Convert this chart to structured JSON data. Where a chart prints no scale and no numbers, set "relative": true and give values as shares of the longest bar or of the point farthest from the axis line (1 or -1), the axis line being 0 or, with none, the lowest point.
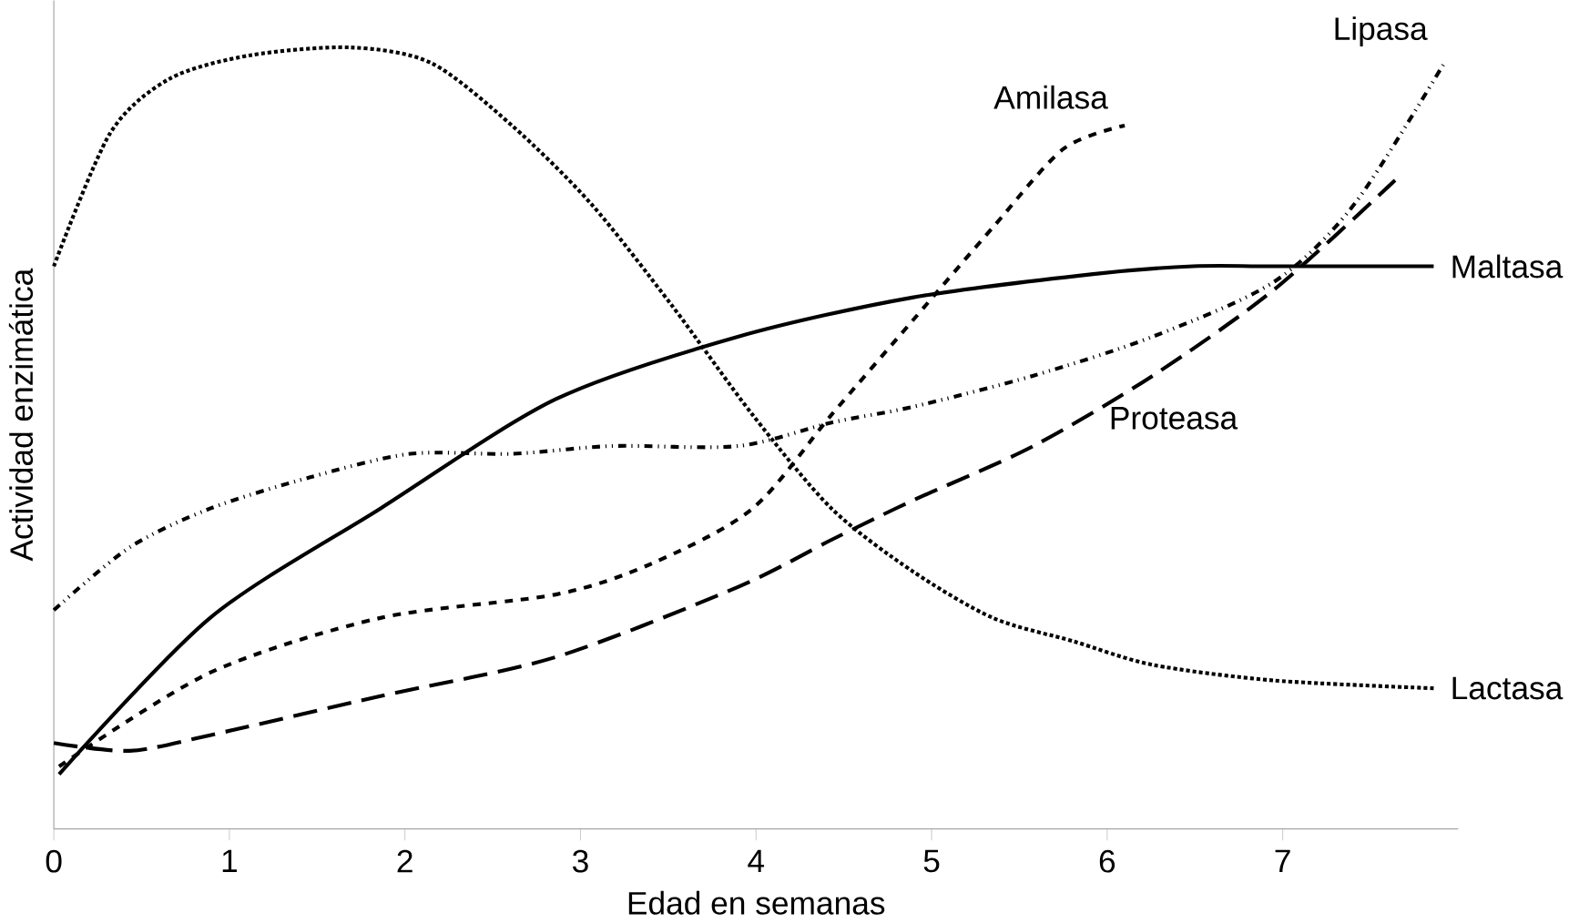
{
  "chart_data": {
    "type": "line",
    "relative": true,
    "xlabel": "Edad en semanas",
    "ylabel": "Actividad enzimática",
    "xlim": [
      0,
      8
    ],
    "xticks": [
      0,
      1,
      2,
      3,
      4,
      5,
      6,
      7
    ],
    "tick_labels": "x",
    "grid": false,
    "legend": false,
    "marker": "none",
    "series": [
      {
        "name": "Lactasa",
        "color": "#000000",
        "line_style": "dotted",
        "x": [
          0,
          0.32,
          0.66,
          1.12,
          1.69,
          2.15,
          2.61,
          3.06,
          3.52,
          3.98,
          4.43,
          4.89,
          5.35,
          5.81,
          6.26,
          6.95,
          7.86
        ],
        "values": [
          0.72,
          0.89,
          0.96,
          0.99,
          1.0,
          0.98,
          0.9,
          0.8,
          0.67,
          0.53,
          0.41,
          0.33,
          0.27,
          0.24,
          0.21,
          0.19,
          0.18
        ]
      },
      {
        "name": "Amilasa",
        "color": "#000000",
        "line_style": "dashed",
        "x": [
          0.03,
          0.89,
          1.86,
          2.86,
          3.41,
          3.98,
          4.43,
          4.89,
          5.35,
          5.75,
          6.1
        ],
        "values": [
          0.08,
          0.2,
          0.27,
          0.3,
          0.34,
          0.41,
          0.53,
          0.65,
          0.77,
          0.87,
          0.9
        ]
      },
      {
        "name": "Lipasa",
        "color": "#000000",
        "line_style": "dashdotdotted",
        "x": [
          0,
          0.43,
          0.89,
          1.46,
          2.03,
          2.61,
          3.18,
          3.9,
          4.43,
          4.89,
          5.58,
          6.26,
          6.95,
          7.41,
          7.92
        ],
        "values": [
          0.28,
          0.36,
          0.41,
          0.45,
          0.48,
          0.48,
          0.49,
          0.49,
          0.52,
          0.54,
          0.58,
          0.63,
          0.7,
          0.8,
          0.98
        ]
      },
      {
        "name": "Maltasa",
        "color": "#000000",
        "line_style": "solid",
        "x": [
          0.03,
          0.89,
          1.86,
          2.86,
          3.9,
          4.89,
          5.92,
          6.49,
          6.95,
          7.86
        ],
        "values": [
          0.07,
          0.27,
          0.41,
          0.55,
          0.63,
          0.68,
          0.71,
          0.72,
          0.72,
          0.72
        ]
      },
      {
        "name": "Proteasa",
        "color": "#000000",
        "line_style": "longdashed",
        "x": [
          0,
          0.43,
          0.89,
          1.86,
          2.86,
          3.9,
          4.43,
          4.89,
          5.58,
          6.26,
          6.95,
          7.64
        ],
        "values": [
          0.11,
          0.1,
          0.12,
          0.17,
          0.22,
          0.31,
          0.37,
          0.42,
          0.49,
          0.58,
          0.69,
          0.83
        ]
      }
    ]
  }
}
